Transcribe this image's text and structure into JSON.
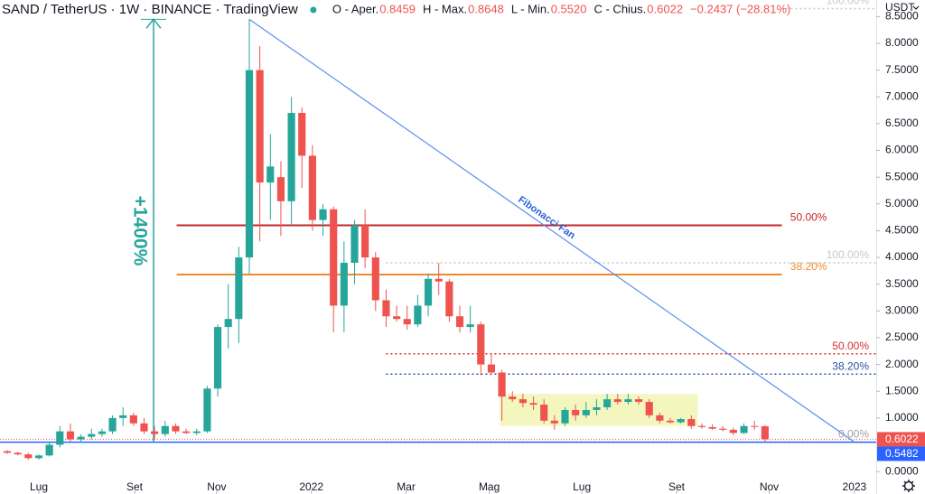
{
  "chart_data": {
    "type": "candlestick",
    "title": "SAND / TetherUS · 1W · BINANCE · TradingView",
    "header": [
      {
        "label": "O - Aper.",
        "value": "0.8459"
      },
      {
        "label": "H - Max.",
        "value": "0.8648"
      },
      {
        "label": "L - Min.",
        "value": "0.5520"
      },
      {
        "label": "C - Chius.",
        "value": "0.6022"
      }
    ],
    "change": "−0.2437 (−28.81%)",
    "currency": "USDT",
    "up_color": "#26a69a",
    "down_color": "#ef5350",
    "x": [
      -3,
      -2,
      -1,
      0,
      1,
      2,
      3,
      4,
      5,
      6,
      7,
      8,
      9,
      10,
      11,
      12,
      13,
      14,
      15,
      16,
      17,
      18,
      19,
      20,
      21,
      22,
      23,
      24,
      25,
      26,
      27,
      28,
      29,
      30,
      31,
      32,
      33,
      34,
      35,
      36,
      37,
      38,
      39,
      40,
      41,
      42,
      43,
      44,
      45,
      46,
      47,
      48,
      49,
      50,
      51,
      52,
      53,
      54,
      55,
      56,
      57,
      58,
      59,
      60,
      61,
      62,
      63,
      64,
      65,
      66,
      67,
      68,
      69
    ],
    "open": [
      0.38,
      0.35,
      0.32,
      0.25,
      0.3,
      0.5,
      0.75,
      0.6,
      0.65,
      0.7,
      0.75,
      1.0,
      1.05,
      0.9,
      0.75,
      0.7,
      0.85,
      0.75,
      0.72,
      0.75,
      1.55,
      2.7,
      2.85,
      4.0,
      7.5,
      5.4,
      5.5,
      5.05,
      6.7,
      5.9,
      4.7,
      4.9,
      3.1,
      3.9,
      4.6,
      4.0,
      3.2,
      2.9,
      2.85,
      2.75,
      3.1,
      3.6,
      3.55,
      2.9,
      2.7,
      2.75,
      2.0,
      1.85,
      1.4,
      1.35,
      1.28,
      1.25,
      0.95,
      0.9,
      1.15,
      1.05,
      1.15,
      1.2,
      1.35,
      1.3,
      1.35,
      1.3,
      1.05,
      0.95,
      0.92,
      0.98,
      0.85,
      0.83,
      0.8,
      0.78,
      0.72,
      0.85,
      0.8459
    ],
    "high": [
      0.4,
      0.37,
      0.35,
      0.32,
      0.55,
      0.85,
      0.9,
      0.7,
      0.8,
      0.8,
      1.05,
      1.2,
      1.1,
      1.0,
      0.85,
      0.95,
      0.9,
      0.8,
      0.8,
      1.6,
      2.75,
      3.5,
      4.2,
      8.45,
      7.95,
      6.3,
      5.8,
      7.0,
      6.8,
      6.1,
      5.0,
      4.95,
      4.3,
      4.7,
      4.9,
      4.1,
      3.4,
      3.1,
      3.1,
      3.3,
      3.7,
      3.9,
      3.6,
      3.1,
      3.1,
      2.8,
      2.2,
      1.9,
      1.5,
      1.45,
      1.4,
      1.35,
      1.05,
      1.2,
      1.25,
      1.3,
      1.35,
      1.45,
      1.45,
      1.45,
      1.4,
      1.35,
      1.1,
      1.0,
      1.0,
      1.05,
      0.9,
      0.88,
      0.85,
      0.82,
      0.9,
      0.95,
      0.8648
    ],
    "low": [
      0.33,
      0.3,
      0.22,
      0.22,
      0.28,
      0.45,
      0.55,
      0.55,
      0.6,
      0.65,
      0.7,
      0.85,
      0.85,
      0.7,
      0.6,
      0.65,
      0.7,
      0.7,
      0.68,
      0.72,
      1.4,
      2.3,
      2.4,
      3.7,
      4.3,
      4.7,
      4.4,
      4.6,
      5.3,
      4.5,
      4.4,
      2.6,
      2.6,
      3.5,
      3.8,
      3.0,
      2.7,
      2.8,
      2.65,
      2.7,
      2.9,
      3.3,
      2.8,
      2.6,
      2.6,
      1.8,
      1.8,
      0.95,
      1.3,
      1.2,
      1.15,
      0.9,
      0.78,
      0.85,
      0.95,
      1.0,
      1.05,
      1.15,
      1.25,
      1.25,
      1.25,
      1.0,
      0.9,
      0.9,
      0.9,
      0.8,
      0.8,
      0.78,
      0.75,
      0.68,
      0.7,
      0.78,
      0.552
    ],
    "close": [
      0.35,
      0.32,
      0.25,
      0.3,
      0.5,
      0.75,
      0.6,
      0.65,
      0.7,
      0.75,
      1.0,
      1.05,
      0.9,
      0.75,
      0.7,
      0.85,
      0.75,
      0.72,
      0.75,
      1.55,
      2.7,
      2.85,
      4.0,
      7.5,
      5.4,
      5.7,
      5.05,
      6.7,
      5.9,
      4.7,
      4.9,
      3.1,
      3.9,
      4.6,
      4.0,
      3.2,
      2.9,
      2.85,
      2.75,
      3.1,
      3.6,
      3.55,
      2.9,
      2.7,
      2.75,
      2.0,
      1.85,
      1.4,
      1.35,
      1.28,
      1.25,
      0.95,
      0.9,
      1.15,
      1.05,
      1.15,
      1.2,
      1.35,
      1.3,
      1.35,
      1.3,
      1.05,
      0.95,
      0.92,
      0.98,
      0.85,
      0.83,
      0.8,
      0.78,
      0.72,
      0.85,
      0.8459,
      0.6022
    ],
    "xlim": [
      -3.69,
      79.57
    ],
    "xticks": [
      {
        "value": 0,
        "label": "Lug"
      },
      {
        "value": 9.1,
        "label": "Set"
      },
      {
        "value": 16.9,
        "label": "Nov"
      },
      {
        "value": 25.9,
        "label": "2022"
      },
      {
        "value": 34.9,
        "label": "Mar"
      },
      {
        "value": 42.8,
        "label": "Mag"
      },
      {
        "value": 51.6,
        "label": "Lug"
      },
      {
        "value": 60.6,
        "label": "Set"
      },
      {
        "value": 69.4,
        "label": "Nov"
      },
      {
        "value": 77.5,
        "label": "2023"
      }
    ],
    "ylim": [
      -0.42,
      8.81
    ],
    "yticks": [
      {
        "value": 0,
        "label": "0.0000"
      },
      {
        "value": 0.5,
        "label": "0.5000"
      },
      {
        "value": 1,
        "label": "1.0000"
      },
      {
        "value": 1.5,
        "label": "1.5000"
      },
      {
        "value": 2,
        "label": "2.0000"
      },
      {
        "value": 2.5,
        "label": "2.5000"
      },
      {
        "value": 3,
        "label": "3.0000"
      },
      {
        "value": 3.5,
        "label": "3.5000"
      },
      {
        "value": 4,
        "label": "4.0000"
      },
      {
        "value": 4.5,
        "label": "4.5000"
      },
      {
        "value": 5,
        "label": "5.0000"
      },
      {
        "value": 5.5,
        "label": "5.5000"
      },
      {
        "value": 6,
        "label": "6.0000"
      },
      {
        "value": 6.5,
        "label": "6.5000"
      },
      {
        "value": 7,
        "label": "7.0000"
      },
      {
        "value": 7.5,
        "label": "7.5000"
      },
      {
        "value": 8,
        "label": "8.0000"
      },
      {
        "value": 8.5,
        "label": "8.5000"
      }
    ],
    "levels": [
      {
        "label": "100.00%",
        "value": 8.65,
        "color": "#c8c8c8",
        "style": "dotted",
        "x": [
          70.6,
          79.57
        ]
      },
      {
        "label": "50.00%",
        "value": 4.6,
        "color": "#c62828",
        "style": "solid",
        "x": [
          13.1,
          70.6
        ]
      },
      {
        "label": "38.20%",
        "value": 3.68,
        "color": "#ef8a2c",
        "style": "solid",
        "x": [
          13.1,
          70.6
        ]
      },
      {
        "label": "100.00%",
        "value": 3.9,
        "color": "#c8c8c8",
        "style": "dotted",
        "x": [
          33,
          79.57
        ]
      },
      {
        "label": "50.00%",
        "value": 2.2,
        "color": "#d32f2f",
        "style": "dotted",
        "x": [
          33,
          79.57
        ]
      },
      {
        "label": "38.20%",
        "value": 1.82,
        "color": "#2a4fa8",
        "style": "dotted",
        "x": [
          33,
          79.57
        ]
      },
      {
        "label": "0.00%",
        "value": 0.55,
        "color": "#a0a0a0",
        "style": "dotted",
        "x": [
          33,
          79.57
        ]
      }
    ],
    "price_lines": [
      {
        "value": 0.6022,
        "label": "0.6022",
        "color": "#ef5350",
        "style": "dotted"
      },
      {
        "value": 0.5482,
        "label": "0.5482",
        "color": "#2962ff",
        "style": "solid"
      }
    ],
    "fan": {
      "label": "Fibonacci Fan",
      "from": [
        20,
        8.45
      ],
      "to": [
        77.5,
        0.55
      ],
      "color": "#5b8def"
    },
    "range_arrow": {
      "label": "+1400%",
      "x": 10.9,
      "from": 0.55,
      "to": 8.45,
      "color": "#26a69a"
    },
    "box": {
      "x": [
        43.8,
        62.6
      ],
      "y": [
        0.85,
        1.45
      ],
      "color": "#f2f5b4"
    }
  }
}
